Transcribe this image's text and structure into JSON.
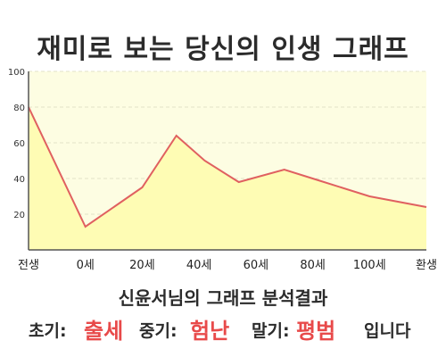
{
  "title": "재미로 보는 당신의 인생 그래프",
  "colors": {
    "line": "#e06060",
    "fill": "#fefcb4",
    "plot_bg": "#fdfde2",
    "highlight": "#e84a4a",
    "axis": "#555555",
    "grid": "#e2e2c8"
  },
  "chart_data": {
    "type": "area",
    "title": "재미로 보는 당신의 인생 그래프",
    "xlabel": "",
    "ylabel": "",
    "ylim": [
      0,
      100
    ],
    "y_ticks": [
      20,
      40,
      60,
      80,
      100
    ],
    "x_tick_labels": [
      "전생",
      "0세",
      "20세",
      "40세",
      "60세",
      "80세",
      "100세",
      "환생"
    ],
    "grid": true,
    "x": [
      0,
      1,
      2,
      2.6,
      3.1,
      3.7,
      4.5,
      5.1,
      6,
      7
    ],
    "values": [
      80,
      13,
      35,
      64,
      50,
      38,
      45,
      39,
      30,
      24
    ]
  },
  "caption": "신윤서님의 그래프 분석결과",
  "summary": {
    "early_label": "초기:",
    "early_value": "출세",
    "mid_label": "중기:",
    "mid_value": "험난",
    "late_label": "말기:",
    "late_value": "평범",
    "ending": "입니다"
  }
}
